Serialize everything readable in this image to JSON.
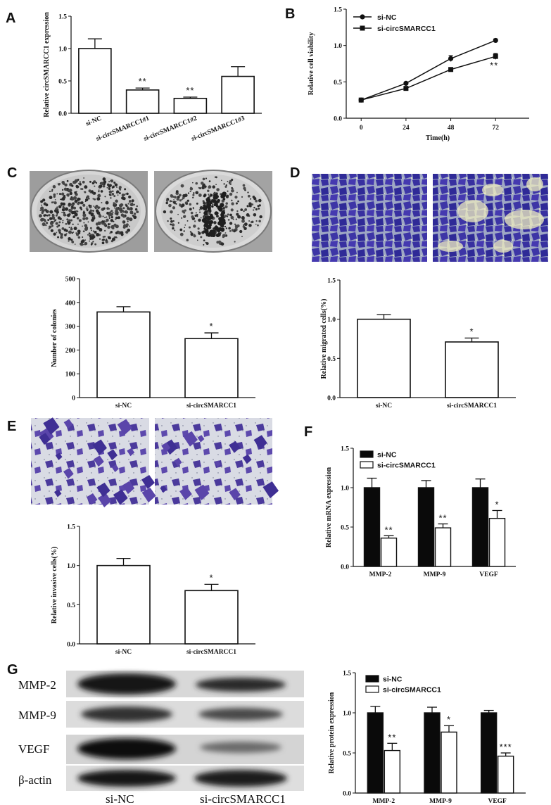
{
  "panels": {
    "A": "A",
    "B": "B",
    "C": "C",
    "D": "D",
    "E": "E",
    "F": "F",
    "G": "G"
  },
  "blot": {
    "rows": [
      "MMP-2",
      "MMP-9",
      "VEGF",
      "β-actin"
    ],
    "lanes": [
      "si-NC",
      "si-circSMARCC1"
    ]
  },
  "photos": {
    "C": "colony-plate-photo",
    "D": "migration-stain-photo",
    "E": "invasion-stain-photo"
  },
  "chart_data": [
    {
      "id": "A",
      "type": "bar",
      "categories": [
        "si-NC",
        "si-circSMARCC1#1",
        "si-circSMARCC1#2",
        "si-circSMARCC1#3"
      ],
      "values": [
        1.0,
        0.36,
        0.23,
        0.57
      ],
      "errors": [
        0.15,
        0.03,
        0.02,
        0.15
      ],
      "annotations": [
        "",
        "**",
        "**",
        ""
      ],
      "ylabel": "Relative circSMARCC1 expression",
      "yticks": [
        "0.0",
        "0.5",
        "1.0",
        "1.5"
      ],
      "ylim": [
        0,
        1.5
      ]
    },
    {
      "id": "B",
      "type": "line",
      "x": [
        0,
        24,
        48,
        72
      ],
      "xticks": [
        "0",
        "24",
        "48",
        "72"
      ],
      "series": [
        {
          "name": "si-NC",
          "values": [
            0.25,
            0.48,
            0.82,
            1.07
          ],
          "errors": [
            0.01,
            0.01,
            0.04,
            0.02
          ]
        },
        {
          "name": "si-circSMARCC1",
          "values": [
            0.25,
            0.41,
            0.67,
            0.85
          ],
          "errors": [
            0.01,
            0.01,
            0.01,
            0.04
          ]
        }
      ],
      "annotations": [
        {
          "x": 72,
          "text": "**"
        }
      ],
      "xlabel": "Time(h)",
      "ylabel": "Relative cell viability",
      "yticks": [
        "0.0",
        "0.5",
        "1.0",
        "1.5"
      ],
      "ylim": [
        0,
        1.5
      ]
    },
    {
      "id": "C",
      "type": "bar",
      "categories": [
        "si-NC",
        "si-circSMARCC1"
      ],
      "values": [
        360,
        248
      ],
      "errors": [
        22,
        24
      ],
      "annotations": [
        "",
        "*"
      ],
      "ylabel": "Number of colonies",
      "yticks": [
        "0",
        "100",
        "200",
        "300",
        "400",
        "500"
      ],
      "ylim": [
        0,
        500
      ]
    },
    {
      "id": "D",
      "type": "bar",
      "categories": [
        "si-NC",
        "si-circSMARCC1"
      ],
      "values": [
        1.0,
        0.71
      ],
      "errors": [
        0.06,
        0.05
      ],
      "annotations": [
        "",
        "*"
      ],
      "ylabel": "Relative migrated cells(%)",
      "yticks": [
        "0.0",
        "0.5",
        "1.0",
        "1.5"
      ],
      "ylim": [
        0,
        1.5
      ]
    },
    {
      "id": "E",
      "type": "bar",
      "categories": [
        "si-NC",
        "si-circSMARCC1"
      ],
      "values": [
        1.0,
        0.68
      ],
      "errors": [
        0.09,
        0.08
      ],
      "annotations": [
        "",
        "*"
      ],
      "ylabel": "Relative invasive cells(%)",
      "yticks": [
        "0.0",
        "0.5",
        "1.0",
        "1.5"
      ],
      "ylim": [
        0,
        1.5
      ]
    },
    {
      "id": "F",
      "type": "bar",
      "categories": [
        "MMP-2",
        "MMP-9",
        "VEGF"
      ],
      "series": [
        {
          "name": "si-NC",
          "values": [
            1.0,
            1.0,
            1.0
          ],
          "errors": [
            0.12,
            0.09,
            0.11
          ]
        },
        {
          "name": "si-circSMARCC1",
          "values": [
            0.36,
            0.49,
            0.61
          ],
          "errors": [
            0.03,
            0.05,
            0.1
          ]
        }
      ],
      "annotations": [
        "**",
        "**",
        "*"
      ],
      "ylabel": "Relative mRNA expression",
      "yticks": [
        "0.0",
        "0.5",
        "1.0",
        "1.5"
      ],
      "ylim": [
        0,
        1.5
      ]
    },
    {
      "id": "G",
      "type": "bar",
      "categories": [
        "MMP-2",
        "MMP-9",
        "VEGF"
      ],
      "series": [
        {
          "name": "si-NC",
          "values": [
            1.0,
            1.0,
            1.0
          ],
          "errors": [
            0.08,
            0.07,
            0.03
          ]
        },
        {
          "name": "si-circSMARCC1",
          "values": [
            0.53,
            0.76,
            0.46
          ],
          "errors": [
            0.09,
            0.08,
            0.04
          ]
        }
      ],
      "annotations": [
        "**",
        "*",
        "***"
      ],
      "ylabel": "Relative protein expression",
      "yticks": [
        "0.0",
        "0.5",
        "1.0",
        "1.5"
      ],
      "ylim": [
        0,
        1.5
      ]
    }
  ]
}
